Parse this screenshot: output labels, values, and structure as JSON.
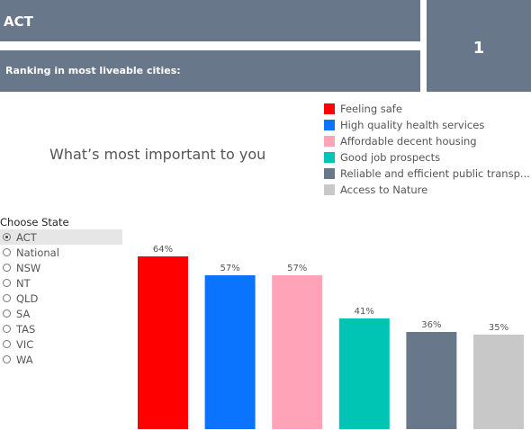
{
  "header": {
    "state_name": "ACT",
    "ranking_label": "Ranking in most liveable cities:",
    "rank_value": "1"
  },
  "question": "What’s most important to you",
  "filter": {
    "label": "Choose State",
    "options": [
      "ACT",
      "National",
      "NSW",
      "NT",
      "QLD",
      "SA",
      "TAS",
      "VIC",
      "WA"
    ],
    "selected": "ACT"
  },
  "legend": [
    {
      "label": "Feeling safe",
      "color": "#ff0000"
    },
    {
      "label": "High quality health services",
      "color": "#0a74ff"
    },
    {
      "label": "Affordable decent housing",
      "color": "#fea3b8"
    },
    {
      "label": "Good job prospects",
      "color": "#00c5b5"
    },
    {
      "label": "Reliable and efficient public transp...",
      "color": "#69778a"
    },
    {
      "label": "Access to Nature",
      "color": "#c8c8c8"
    }
  ],
  "chart_data": {
    "type": "bar",
    "categories": [
      "Feeling safe",
      "High quality health services",
      "Affordable decent housing",
      "Good job prospects",
      "Reliable and efficient public transport",
      "Access to Nature"
    ],
    "values": [
      64,
      57,
      57,
      41,
      36,
      35
    ],
    "value_labels": [
      "64%",
      "57%",
      "57%",
      "41%",
      "36%",
      "35%"
    ],
    "colors": [
      "#ff0000",
      "#0a74ff",
      "#fea3b8",
      "#00c5b5",
      "#69778a",
      "#c8c8c8"
    ],
    "ylim": [
      0,
      70
    ],
    "grid": false,
    "legend_position": "top-right"
  }
}
